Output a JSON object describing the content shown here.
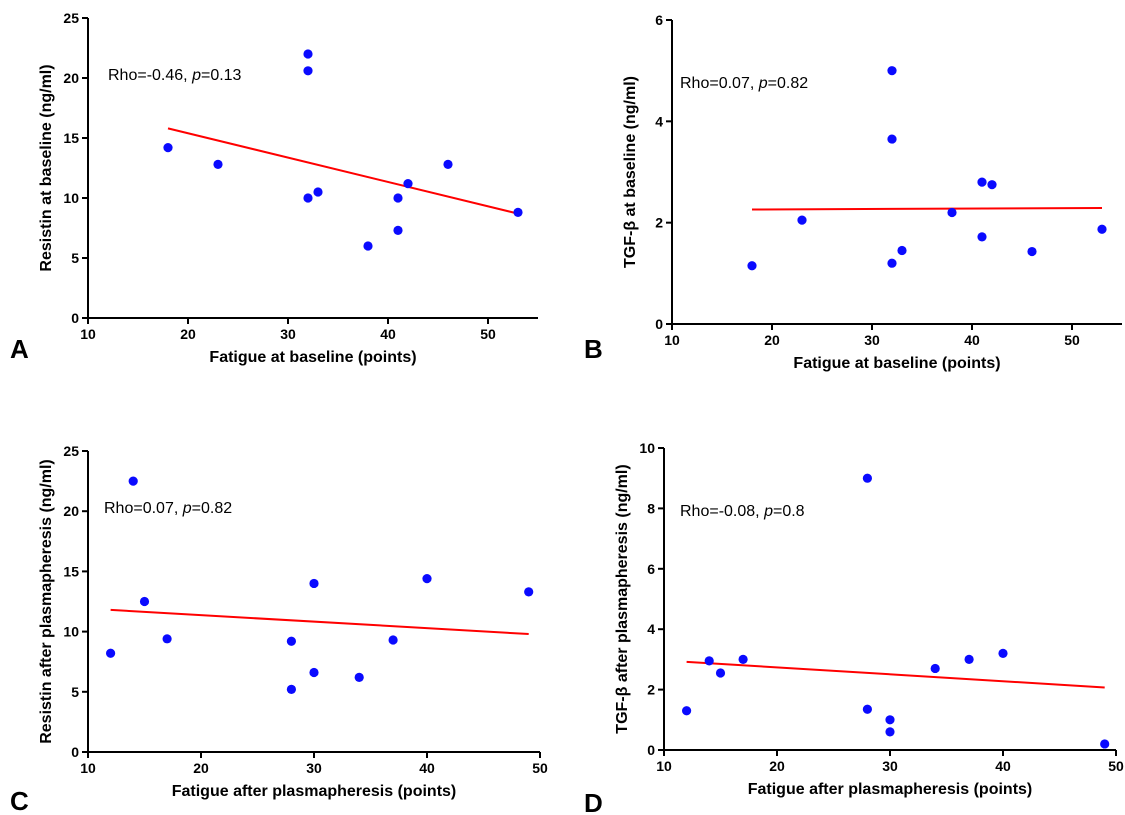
{
  "chart_data": [
    {
      "panel": "A",
      "type": "scatter",
      "xlabel": "Fatigue at baseline (points)",
      "ylabel": "Resistin at baseline (ng/ml)",
      "annotation": {
        "prefix": "Rho=-0.46, ",
        "p_symbol": "p",
        "suffix": "=0.13"
      },
      "xlim": [
        10,
        55
      ],
      "ylim": [
        0,
        25
      ],
      "x_ticks": [
        10,
        20,
        30,
        40,
        50
      ],
      "y_ticks": [
        0,
        5,
        10,
        15,
        20,
        25
      ],
      "points": [
        {
          "x": 18,
          "y": 14.2
        },
        {
          "x": 23,
          "y": 12.8
        },
        {
          "x": 32,
          "y": 22.0
        },
        {
          "x": 32,
          "y": 20.6
        },
        {
          "x": 32,
          "y": 10.0
        },
        {
          "x": 33,
          "y": 10.5
        },
        {
          "x": 38,
          "y": 6.0
        },
        {
          "x": 41,
          "y": 10.0
        },
        {
          "x": 41,
          "y": 7.3
        },
        {
          "x": 42,
          "y": 11.2
        },
        {
          "x": 46,
          "y": 12.8
        },
        {
          "x": 53,
          "y": 8.8
        }
      ],
      "fit": {
        "x": [
          18,
          53
        ],
        "y": [
          15.8,
          8.7
        ]
      },
      "point_color": "#0a0aff",
      "line_color": "#ff0000"
    },
    {
      "panel": "B",
      "type": "scatter",
      "xlabel": "Fatigue at baseline (points)",
      "ylabel": "TGF-β at baseline (ng/ml)",
      "annotation": {
        "prefix": "Rho=0.07, ",
        "p_symbol": "p",
        "suffix": "=0.82"
      },
      "xlim": [
        10,
        55
      ],
      "ylim": [
        0,
        6
      ],
      "x_ticks": [
        10,
        20,
        30,
        40,
        50
      ],
      "y_ticks": [
        0,
        2,
        4,
        6
      ],
      "points": [
        {
          "x": 18,
          "y": 1.15
        },
        {
          "x": 23,
          "y": 2.05
        },
        {
          "x": 32,
          "y": 5.0
        },
        {
          "x": 32,
          "y": 3.65
        },
        {
          "x": 32,
          "y": 1.2
        },
        {
          "x": 33,
          "y": 1.45
        },
        {
          "x": 38,
          "y": 2.2
        },
        {
          "x": 41,
          "y": 2.8
        },
        {
          "x": 41,
          "y": 1.72
        },
        {
          "x": 42,
          "y": 2.75
        },
        {
          "x": 46,
          "y": 1.43
        },
        {
          "x": 53,
          "y": 1.87
        }
      ],
      "fit": {
        "x": [
          18,
          53
        ],
        "y": [
          2.26,
          2.29
        ]
      },
      "point_color": "#0a0aff",
      "line_color": "#ff0000"
    },
    {
      "panel": "C",
      "type": "scatter",
      "xlabel": "Fatigue after plasmapheresis (points)",
      "ylabel": "Resistin after plasmapheresis (ng/ml)",
      "annotation": {
        "prefix": "Rho=0.07, ",
        "p_symbol": "p",
        "suffix": "=0.82"
      },
      "xlim": [
        10,
        50
      ],
      "ylim": [
        0,
        25
      ],
      "x_ticks": [
        10,
        20,
        30,
        40,
        50
      ],
      "y_ticks": [
        0,
        5,
        10,
        15,
        20,
        25
      ],
      "points": [
        {
          "x": 12,
          "y": 8.2
        },
        {
          "x": 14,
          "y": 22.5
        },
        {
          "x": 15,
          "y": 12.5
        },
        {
          "x": 17,
          "y": 9.4
        },
        {
          "x": 28,
          "y": 9.2
        },
        {
          "x": 28,
          "y": 5.2
        },
        {
          "x": 30,
          "y": 14.0
        },
        {
          "x": 30,
          "y": 6.6
        },
        {
          "x": 34,
          "y": 6.2
        },
        {
          "x": 37,
          "y": 9.3
        },
        {
          "x": 40,
          "y": 14.4
        },
        {
          "x": 49,
          "y": 13.3
        }
      ],
      "fit": {
        "x": [
          12,
          49
        ],
        "y": [
          11.8,
          9.8
        ]
      },
      "point_color": "#0a0aff",
      "line_color": "#ff0000"
    },
    {
      "panel": "D",
      "type": "scatter",
      "xlabel": "Fatigue after plasmapheresis (points)",
      "ylabel": "TGF-β after plasmapheresis (ng/ml)",
      "annotation": {
        "prefix": "Rho=-0.08, ",
        "p_symbol": "p",
        "suffix": "=0.8"
      },
      "xlim": [
        10,
        50
      ],
      "ylim": [
        0,
        10
      ],
      "x_ticks": [
        10,
        20,
        30,
        40,
        50
      ],
      "y_ticks": [
        0,
        2,
        4,
        6,
        8,
        10
      ],
      "points": [
        {
          "x": 12,
          "y": 1.3
        },
        {
          "x": 14,
          "y": 2.95
        },
        {
          "x": 15,
          "y": 2.55
        },
        {
          "x": 17,
          "y": 3.0
        },
        {
          "x": 28,
          "y": 9.0
        },
        {
          "x": 28,
          "y": 1.35
        },
        {
          "x": 30,
          "y": 1.0
        },
        {
          "x": 30,
          "y": 0.6
        },
        {
          "x": 34,
          "y": 2.7
        },
        {
          "x": 37,
          "y": 3.0
        },
        {
          "x": 40,
          "y": 3.2
        },
        {
          "x": 49,
          "y": 0.2
        }
      ],
      "fit": {
        "x": [
          12,
          49
        ],
        "y": [
          2.92,
          2.07
        ]
      },
      "point_color": "#0a0aff",
      "line_color": "#ff0000"
    }
  ]
}
